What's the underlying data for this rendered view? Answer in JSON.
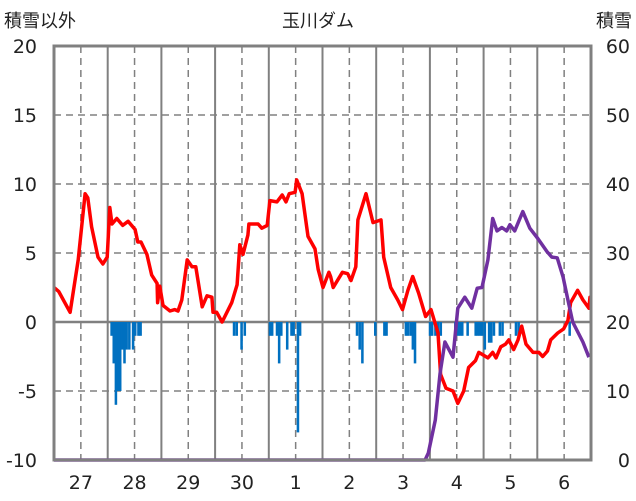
{
  "chart_data": {
    "type": "line",
    "title": "玉川ダム",
    "ylabel_left": "積雪以外",
    "ylabel_right": "積雪",
    "ylim_left": [
      -10,
      20
    ],
    "ylim_right": [
      0,
      60
    ],
    "yticks_left": [
      "20",
      "15",
      "10",
      "5",
      "0",
      "-5",
      "-10"
    ],
    "yticks_right": [
      "60",
      "50",
      "40",
      "30",
      "20",
      "10",
      "0"
    ],
    "x_unit": "days since start of day 27",
    "xlim": [
      0,
      10
    ],
    "categories": [
      "27",
      "28",
      "29",
      "30",
      "1",
      "2",
      "3",
      "4",
      "5",
      "6"
    ],
    "grid": true,
    "colors": {
      "temperature": "#ff0000",
      "snow_depth": "#7030a0",
      "precipitation": "#0070c0",
      "grid": "#808080"
    },
    "series": [
      {
        "name": "temperature",
        "axis": "left",
        "points": [
          [
            0,
            2.5
          ],
          [
            0.09,
            2.2
          ],
          [
            0.3,
            0.7
          ],
          [
            0.45,
            4.5
          ],
          [
            0.58,
            9.3
          ],
          [
            0.63,
            9.0
          ],
          [
            0.7,
            6.9
          ],
          [
            0.82,
            4.7
          ],
          [
            0.91,
            4.2
          ],
          [
            0.99,
            4.7
          ],
          [
            1.04,
            8.3
          ],
          [
            1.08,
            7.1
          ],
          [
            1.17,
            7.5
          ],
          [
            1.28,
            7.0
          ],
          [
            1.38,
            7.3
          ],
          [
            1.51,
            6.7
          ],
          [
            1.56,
            5.8
          ],
          [
            1.62,
            5.8
          ],
          [
            1.73,
            4.9
          ],
          [
            1.82,
            3.4
          ],
          [
            1.92,
            2.8
          ],
          [
            1.93,
            1.4
          ],
          [
            1.97,
            2.6
          ],
          [
            2.03,
            1.2
          ],
          [
            2.16,
            0.8
          ],
          [
            2.25,
            0.9
          ],
          [
            2.31,
            0.8
          ],
          [
            2.38,
            1.6
          ],
          [
            2.48,
            4.5
          ],
          [
            2.57,
            4.0
          ],
          [
            2.64,
            4.0
          ],
          [
            2.76,
            1.1
          ],
          [
            2.85,
            1.9
          ],
          [
            2.94,
            1.8
          ],
          [
            2.96,
            0.7
          ],
          [
            3.03,
            0.7
          ],
          [
            3.13,
            0
          ],
          [
            3.31,
            1.4
          ],
          [
            3.41,
            2.7
          ],
          [
            3.46,
            5.6
          ],
          [
            3.52,
            4.9
          ],
          [
            3.61,
            6.3
          ],
          [
            3.63,
            7.1
          ],
          [
            3.8,
            7.1
          ],
          [
            3.87,
            6.8
          ],
          [
            3.97,
            7.0
          ],
          [
            4.02,
            8.8
          ],
          [
            4.15,
            8.7
          ],
          [
            4.25,
            9.2
          ],
          [
            4.32,
            8.7
          ],
          [
            4.38,
            9.3
          ],
          [
            4.49,
            9.4
          ],
          [
            4.52,
            10.3
          ],
          [
            4.62,
            9.3
          ],
          [
            4.73,
            6.2
          ],
          [
            4.86,
            5.3
          ],
          [
            4.92,
            3.8
          ],
          [
            5.01,
            2.5
          ],
          [
            5.12,
            3.6
          ],
          [
            5.15,
            3.3
          ],
          [
            5.2,
            2.5
          ],
          [
            5.37,
            3.6
          ],
          [
            5.47,
            3.5
          ],
          [
            5.53,
            3.0
          ],
          [
            5.62,
            4.0
          ],
          [
            5.66,
            7.4
          ],
          [
            5.81,
            9.3
          ],
          [
            5.94,
            7.2
          ],
          [
            6.09,
            7.4
          ],
          [
            6.14,
            4.7
          ],
          [
            6.27,
            2.5
          ],
          [
            6.4,
            1.6
          ],
          [
            6.49,
            0.9
          ],
          [
            6.59,
            2.3
          ],
          [
            6.68,
            3.3
          ],
          [
            6.79,
            2.1
          ],
          [
            6.92,
            0.4
          ],
          [
            7.02,
            0.9
          ],
          [
            7.15,
            -0.8
          ],
          [
            7.2,
            -3.8
          ],
          [
            7.3,
            -4.8
          ],
          [
            7.43,
            -5.0
          ],
          [
            7.52,
            -5.9
          ],
          [
            7.63,
            -5.0
          ],
          [
            7.72,
            -3.3
          ],
          [
            7.85,
            -2.8
          ],
          [
            7.91,
            -2.2
          ],
          [
            8.08,
            -2.6
          ],
          [
            8.17,
            -2.2
          ],
          [
            8.23,
            -2.6
          ],
          [
            8.32,
            -1.8
          ],
          [
            8.41,
            -1.6
          ],
          [
            8.47,
            -1.3
          ],
          [
            8.56,
            -2.0
          ],
          [
            8.64,
            -1.3
          ],
          [
            8.71,
            -0.3
          ],
          [
            8.79,
            -1.6
          ],
          [
            8.92,
            -2.2
          ],
          [
            9.03,
            -2.2
          ],
          [
            9.1,
            -2.5
          ],
          [
            9.19,
            -2.1
          ],
          [
            9.25,
            -1.3
          ],
          [
            9.38,
            -0.8
          ],
          [
            9.49,
            -0.5
          ],
          [
            9.57,
            0.1
          ],
          [
            9.62,
            1.4
          ],
          [
            9.75,
            2.3
          ],
          [
            9.85,
            1.6
          ],
          [
            9.96,
            1.0
          ],
          [
            10.13,
            1.8
          ],
          [
            10.18,
            1.7
          ]
        ]
      },
      {
        "name": "snow_depth",
        "axis": "right",
        "points": [
          [
            0,
            0
          ],
          [
            6.91,
            0
          ],
          [
            6.97,
            1.0
          ],
          [
            7.1,
            5.8
          ],
          [
            7.19,
            12.6
          ],
          [
            7.28,
            17.1
          ],
          [
            7.43,
            14.9
          ],
          [
            7.52,
            22
          ],
          [
            7.65,
            23.6
          ],
          [
            7.78,
            22
          ],
          [
            7.88,
            24.9
          ],
          [
            7.97,
            25
          ],
          [
            8.08,
            29
          ],
          [
            8.17,
            35
          ],
          [
            8.25,
            33.2
          ],
          [
            8.34,
            33.7
          ],
          [
            8.43,
            33.2
          ],
          [
            8.49,
            34.1
          ],
          [
            8.58,
            33.2
          ],
          [
            8.73,
            36
          ],
          [
            8.86,
            33.6
          ],
          [
            9.01,
            32.1
          ],
          [
            9.18,
            30.2
          ],
          [
            9.27,
            29.4
          ],
          [
            9.37,
            29.3
          ],
          [
            9.48,
            26.5
          ],
          [
            9.57,
            23.2
          ],
          [
            9.66,
            20
          ],
          [
            9.85,
            17.1
          ],
          [
            9.96,
            14.9
          ]
        ]
      },
      {
        "name": "precipitation",
        "axis": "left",
        "type": "bar",
        "points": [
          [
            1.07,
            -1
          ],
          [
            1.11,
            -3
          ],
          [
            1.15,
            -6
          ],
          [
            1.19,
            -5
          ],
          [
            1.23,
            -5
          ],
          [
            1.27,
            -2
          ],
          [
            1.31,
            -3
          ],
          [
            1.35,
            -2
          ],
          [
            1.4,
            -2
          ],
          [
            1.47,
            -2
          ],
          [
            1.51,
            -1
          ],
          [
            1.57,
            -1
          ],
          [
            1.61,
            -1
          ],
          [
            3.35,
            -1
          ],
          [
            3.4,
            -1
          ],
          [
            3.49,
            -2
          ],
          [
            3.55,
            -1
          ],
          [
            4.02,
            -1
          ],
          [
            4.06,
            -1
          ],
          [
            4.15,
            -1
          ],
          [
            4.19,
            -3
          ],
          [
            4.23,
            -1
          ],
          [
            4.34,
            -2
          ],
          [
            4.42,
            -1
          ],
          [
            4.46,
            -1
          ],
          [
            4.54,
            -8
          ],
          [
            4.58,
            -1
          ],
          [
            5.64,
            -1
          ],
          [
            5.69,
            -2
          ],
          [
            5.74,
            -3
          ],
          [
            5.98,
            -1
          ],
          [
            6.15,
            -1
          ],
          [
            6.19,
            -1
          ],
          [
            6.55,
            -1
          ],
          [
            6.59,
            -1
          ],
          [
            6.64,
            -1
          ],
          [
            6.68,
            -2
          ],
          [
            6.72,
            -3
          ],
          [
            7.0,
            -1
          ],
          [
            7.04,
            -1
          ],
          [
            7.1,
            -1
          ],
          [
            7.15,
            -1
          ],
          [
            7.2,
            -1
          ],
          [
            7.47,
            -1
          ],
          [
            7.52,
            -1
          ],
          [
            7.56,
            -1
          ],
          [
            7.6,
            -1
          ],
          [
            7.7,
            -1
          ],
          [
            7.85,
            -1
          ],
          [
            7.89,
            -1
          ],
          [
            7.93,
            -1
          ],
          [
            7.97,
            -1
          ],
          [
            8.02,
            -2
          ],
          [
            8.1,
            -1.5
          ],
          [
            8.14,
            -1.5
          ],
          [
            8.19,
            -1
          ],
          [
            8.3,
            -1
          ],
          [
            8.35,
            -1
          ],
          [
            8.6,
            -1
          ],
          [
            8.65,
            -1
          ],
          [
            9.6,
            -1
          ]
        ]
      }
    ]
  }
}
